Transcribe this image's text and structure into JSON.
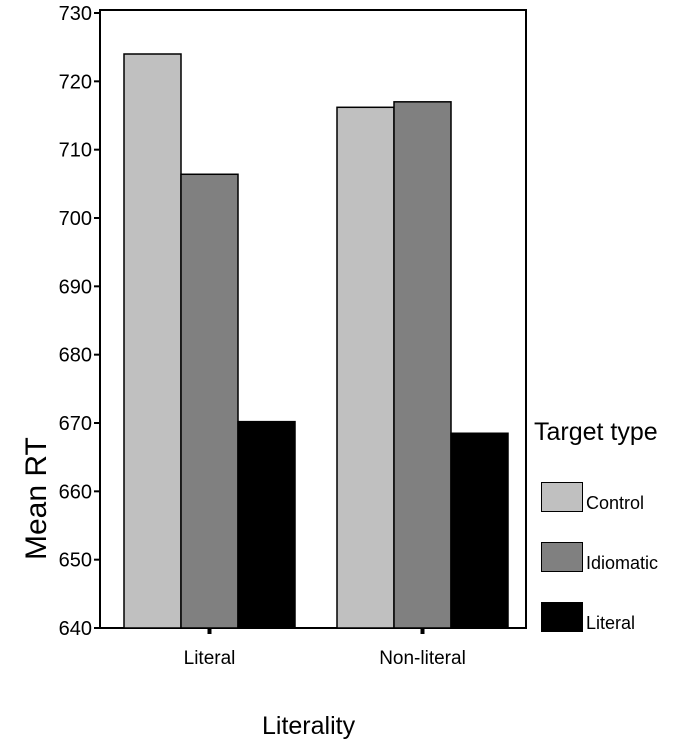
{
  "chart_data": {
    "type": "bar",
    "xlabel": "Literality",
    "ylabel": "Mean RT",
    "categories": [
      "Literal",
      "Non-literal"
    ],
    "ylim": [
      640,
      730
    ],
    "yticks": [
      640,
      650,
      660,
      670,
      680,
      690,
      700,
      710,
      720,
      730
    ],
    "legend_title": "Target type",
    "legend_position": "right",
    "series": [
      {
        "name": "Control",
        "values": [
          724.0,
          716.2
        ],
        "color": "#c0c0c0"
      },
      {
        "name": "Idiomatic",
        "values": [
          706.4,
          717.0
        ],
        "color": "#808080"
      },
      {
        "name": "Literal",
        "values": [
          670.2,
          668.5
        ],
        "color": "#000000"
      }
    ]
  }
}
